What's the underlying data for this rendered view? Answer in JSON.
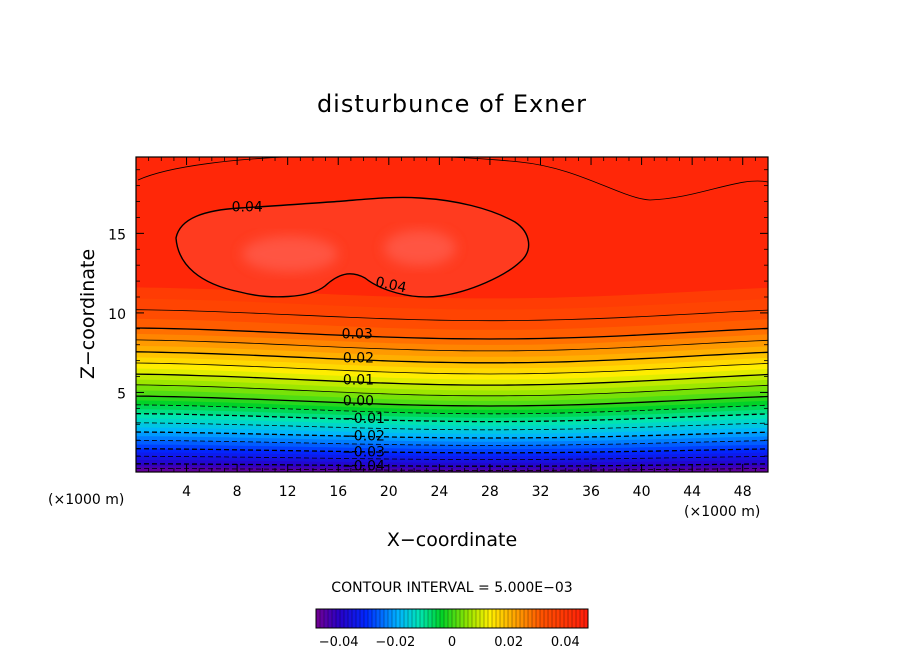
{
  "chart_data": {
    "type": "heatmap",
    "subtype": "filled-contour",
    "title": "disturbunce of Exner",
    "xlabel": "X−coordinate",
    "ylabel": "Z−coordinate",
    "x_unit_note_left": "(×1000 m)",
    "x_unit_note_right": "(×1000 m)",
    "xlim": [
      0,
      50
    ],
    "ylim": [
      0,
      19.8
    ],
    "x_ticks": [
      4,
      8,
      12,
      16,
      20,
      24,
      28,
      32,
      36,
      40,
      44,
      48
    ],
    "x_tick_labels": [
      "4",
      "8",
      "12",
      "16",
      "20",
      "24",
      "28",
      "32",
      "36",
      "40",
      "44",
      "48"
    ],
    "y_ticks": [
      5,
      10,
      15
    ],
    "y_tick_labels": [
      "5",
      "10",
      "15"
    ],
    "contour_interval_text": "CONTOUR INTERVAL = 5.000E−03",
    "contour_interval": 0.005,
    "value_range": [
      -0.048,
      0.048
    ],
    "contour_labels": [
      {
        "text": "0.04",
        "x": 8.8,
        "y": 16.7
      },
      {
        "text": "0.04",
        "x": 20.1,
        "y": 11.8
      },
      {
        "text": "0.03",
        "x": 17.5,
        "y": 8.7
      },
      {
        "text": "0.02",
        "x": 17.6,
        "y": 7.2
      },
      {
        "text": "0.01",
        "x": 17.6,
        "y": 5.8
      },
      {
        "text": "0.00",
        "x": 17.6,
        "y": 4.5
      },
      {
        "text": "−0.01",
        "x": 18.0,
        "y": 3.4
      },
      {
        "text": "−0.02",
        "x": 18.0,
        "y": 2.3
      },
      {
        "text": "−0.03",
        "x": 18.0,
        "y": 1.3
      },
      {
        "text": "−0.04",
        "x": 18.0,
        "y": 0.4
      }
    ],
    "colorbar": {
      "ticks": [
        -0.04,
        -0.02,
        0,
        0.02,
        0.04
      ],
      "tick_labels": [
        "−0.04",
        "−0.02",
        "0",
        "0.02",
        "0.04"
      ]
    },
    "colors": {
      "high": "#ff2a00",
      "peak": "#ff5a4a",
      "low": "#4400aa"
    }
  }
}
